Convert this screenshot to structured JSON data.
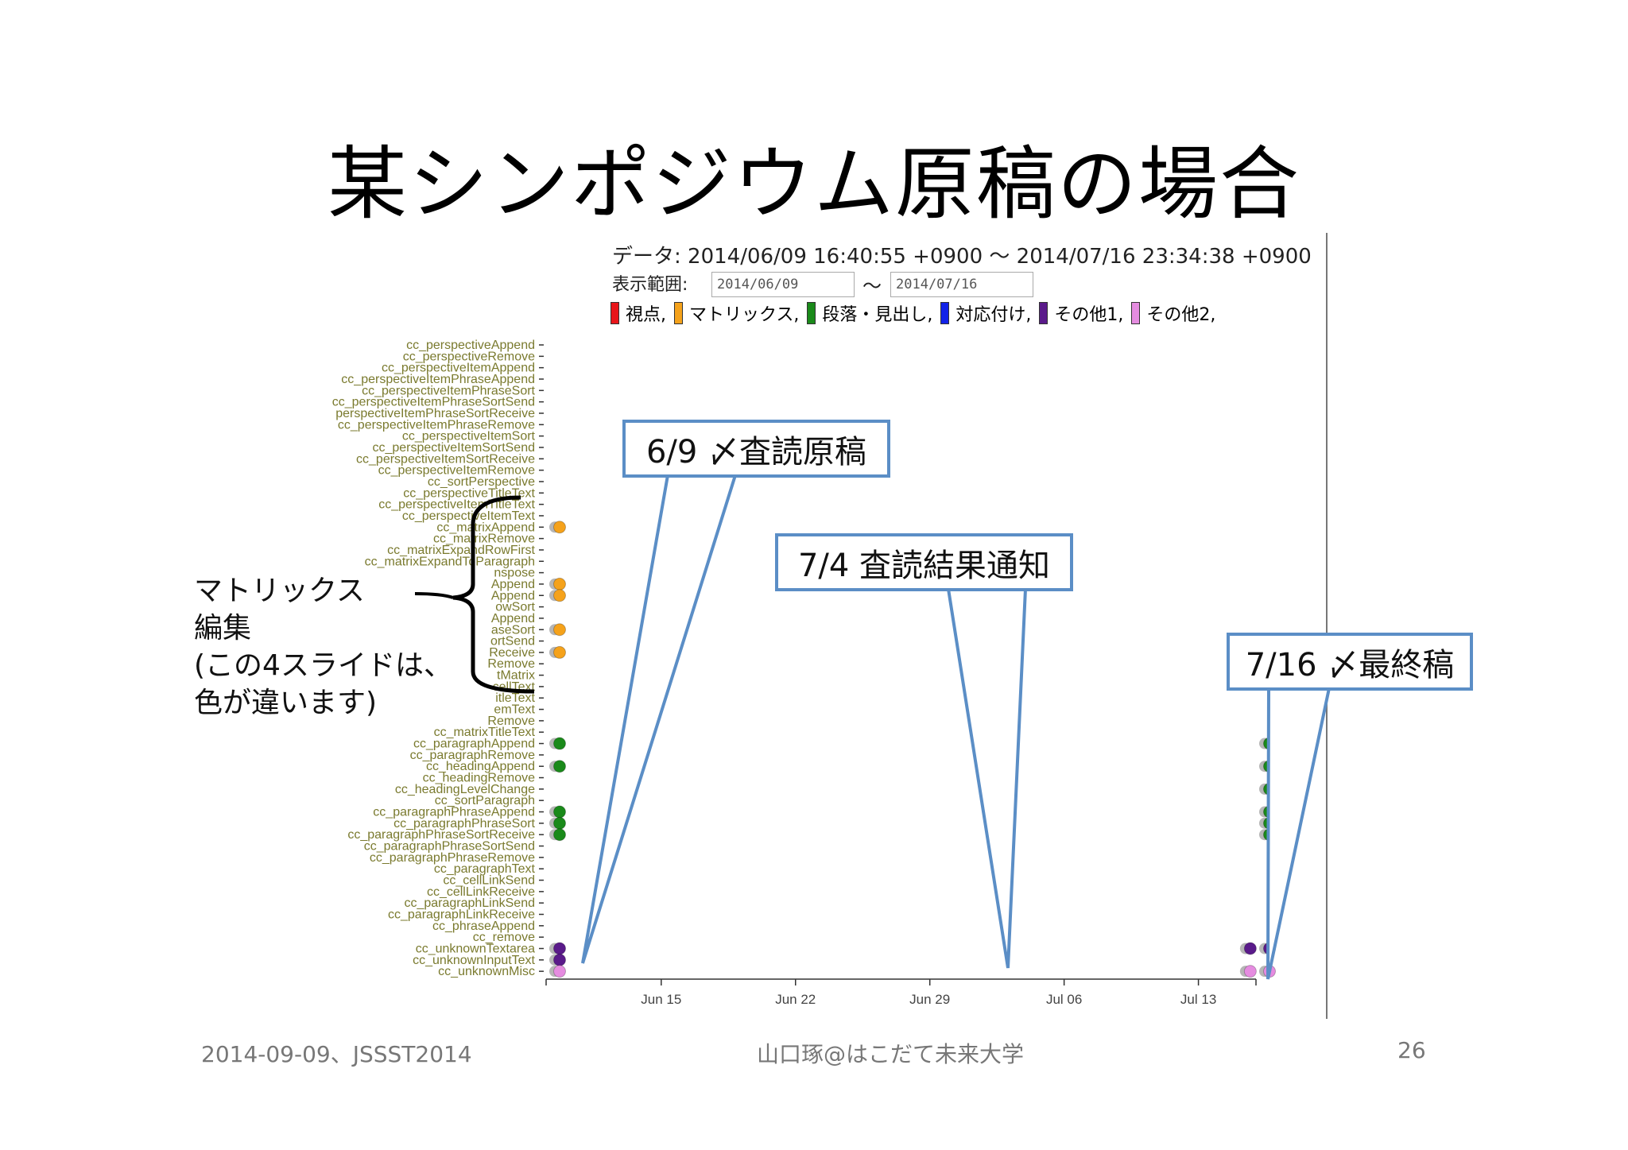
{
  "title": "某シンポジウム原稿の場合",
  "header": {
    "data_range": "データ:  2014/06/09 16:40:55 +0900   〜   2014/07/16 23:34:38 +0900",
    "display_label": "表示範囲:",
    "date_from": "2014/06/09",
    "date_to": "2014/07/16",
    "tilde": "〜"
  },
  "legend": [
    {
      "label": "視点,",
      "color": "#e8161a"
    },
    {
      "label": "マトリックス,",
      "color": "#f5a21b"
    },
    {
      "label": "段落・見出し,",
      "color": "#1a8a1a"
    },
    {
      "label": "対応付け,",
      "color": "#1222e8"
    },
    {
      "label": "その他1,",
      "color": "#5a1a8a"
    },
    {
      "label": "その他2,",
      "color": "#e58ce0"
    }
  ],
  "callouts": [
    "6/9 〆査読原稿",
    "7/4 査読結果通知",
    "7/16 〆最終稿"
  ],
  "side_note": [
    "マトリックス",
    "編集",
    "(この4スライドは、",
    "色が違います)"
  ],
  "footer": {
    "left": "2014-09-09、JSSST2014",
    "center": "山口琢@はこだて未来大学",
    "right": "26"
  },
  "chart_data": {
    "type": "scatter",
    "x_ticks": [
      "Jun 15",
      "Jun 22",
      "Jun 29",
      "Jul 06",
      "Jul 13"
    ],
    "xlim": [
      "2014-06-09",
      "2014-07-16"
    ],
    "categories": [
      "cc_perspectiveAppend",
      "cc_perspectiveRemove",
      "cc_perspectiveItemAppend",
      "cc_perspectiveItemPhraseAppend",
      "cc_perspectiveItemPhraseSort",
      "cc_perspectiveItemPhraseSortSend",
      "perspectiveItemPhraseSortReceive",
      "cc_perspectiveItemPhraseRemove",
      "cc_perspectiveItemSort",
      "cc_perspectiveItemSortSend",
      "cc_perspectiveItemSortReceive",
      "cc_perspectiveItemRemove",
      "cc_sortPerspective",
      "cc_perspectiveTitleText",
      "cc_perspectiveItemTitleText",
      "cc_perspectiveItemText",
      "cc_matrixAppend",
      "cc_matrixRemove",
      "cc_matrixExpandRowFirst",
      "cc_matrixExpandToParagraph",
      "nspose",
      "Append",
      "Append",
      "owSort",
      "Append",
      "aseSort",
      "ortSend",
      "Receive",
      "Remove",
      "tMatrix",
      "cellText",
      "itleText",
      "emText",
      "Remove",
      "cc_matrixTitleText",
      "cc_paragraphAppend",
      "cc_paragraphRemove",
      "cc_headingAppend",
      "cc_headingRemove",
      "cc_headingLevelChange",
      "cc_sortParagraph",
      "cc_paragraphPhraseAppend",
      "cc_paragraphPhraseSort",
      "cc_paragraphPhraseSortReceive",
      "cc_paragraphPhraseSortSend",
      "cc_paragraphPhraseRemove",
      "cc_paragraphText",
      "cc_cellLinkSend",
      "cc_cellLinkReceive",
      "cc_paragraphLinkSend",
      "cc_paragraphLinkReceive",
      "cc_phraseAppend",
      "cc_remove",
      "cc_unknownTextarea",
      "cc_unknownInputText",
      "cc_unknownMisc"
    ],
    "points": [
      {
        "date": "2014-06-09",
        "row": 16,
        "group": "マトリックス"
      },
      {
        "date": "2014-06-09",
        "row": 21,
        "group": "マトリックス"
      },
      {
        "date": "2014-06-09",
        "row": 22,
        "group": "マトリックス"
      },
      {
        "date": "2014-06-09",
        "row": 25,
        "group": "マトリックス"
      },
      {
        "date": "2014-06-09",
        "row": 27,
        "group": "マトリックス"
      },
      {
        "date": "2014-06-09",
        "row": 35,
        "group": "段落・見出し"
      },
      {
        "date": "2014-06-09",
        "row": 37,
        "group": "段落・見出し"
      },
      {
        "date": "2014-06-09",
        "row": 41,
        "group": "段落・見出し"
      },
      {
        "date": "2014-06-09",
        "row": 42,
        "group": "段落・見出し"
      },
      {
        "date": "2014-06-09",
        "row": 43,
        "group": "段落・見出し"
      },
      {
        "date": "2014-06-09",
        "row": 53,
        "group": "その他1"
      },
      {
        "date": "2014-06-09",
        "row": 54,
        "group": "その他1"
      },
      {
        "date": "2014-06-09",
        "row": 55,
        "group": "その他2"
      },
      {
        "date": "2014-07-16",
        "row": 35,
        "group": "段落・見出し"
      },
      {
        "date": "2014-07-16",
        "row": 37,
        "group": "段落・見出し"
      },
      {
        "date": "2014-07-16",
        "row": 39,
        "group": "段落・見出し"
      },
      {
        "date": "2014-07-16",
        "row": 41,
        "group": "段落・見出し"
      },
      {
        "date": "2014-07-16",
        "row": 42,
        "group": "段落・見出し"
      },
      {
        "date": "2014-07-16",
        "row": 43,
        "group": "段落・見出し"
      },
      {
        "date": "2014-07-15",
        "row": 53,
        "group": "その他1"
      },
      {
        "date": "2014-07-16",
        "row": 53,
        "group": "その他1"
      },
      {
        "date": "2014-07-15",
        "row": 55,
        "group": "その他2"
      },
      {
        "date": "2014-07-16",
        "row": 55,
        "group": "その他2"
      }
    ],
    "grid": false
  }
}
